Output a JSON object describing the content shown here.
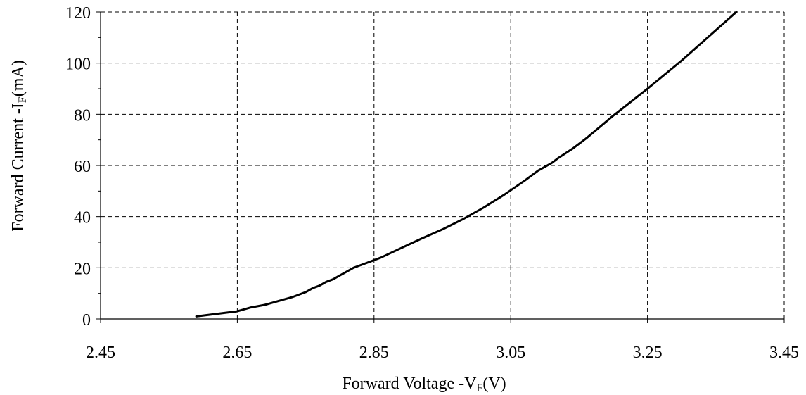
{
  "chart_data": {
    "type": "line",
    "xlabel": {
      "main": "Forward Voltage -V",
      "sub": "F",
      "unit": "(V)"
    },
    "ylabel": {
      "main": "Forward Current -I",
      "sub": "F",
      "unit": "(mA)"
    },
    "xlim": [
      2.45,
      3.45
    ],
    "ylim": [
      0,
      120
    ],
    "x_ticks": [
      2.45,
      2.65,
      2.85,
      3.05,
      3.25,
      3.45
    ],
    "y_ticks": [
      0,
      20,
      40,
      60,
      80,
      100,
      120
    ],
    "x_tick_labels": [
      "2.45",
      "2.65",
      "2.85",
      "3.05",
      "3.25",
      "3.45"
    ],
    "y_tick_labels": [
      "0",
      "20",
      "40",
      "60",
      "80",
      "100",
      "120"
    ],
    "grid": true,
    "series": [
      {
        "color": "#000000",
        "x": [
          2.59,
          2.62,
          2.65,
          2.67,
          2.69,
          2.71,
          2.73,
          2.74,
          2.75,
          2.76,
          2.77,
          2.78,
          2.79,
          2.8,
          2.81,
          2.82,
          2.84,
          2.86,
          2.88,
          2.9,
          2.92,
          2.95,
          2.98,
          3.01,
          3.04,
          3.07,
          3.09,
          3.11,
          3.12,
          3.14,
          3.16,
          3.18,
          3.2,
          3.25,
          3.3,
          3.38
        ],
        "y": [
          1,
          2,
          3,
          4.5,
          5.5,
          7,
          8.5,
          9.5,
          10.5,
          12,
          13,
          14.5,
          15.5,
          17,
          18.5,
          20,
          22,
          24,
          26.5,
          29,
          31.5,
          35,
          39,
          43.5,
          48.5,
          54,
          58,
          61,
          63,
          66.5,
          70.5,
          75,
          79.5,
          90,
          101,
          120
        ]
      }
    ]
  }
}
